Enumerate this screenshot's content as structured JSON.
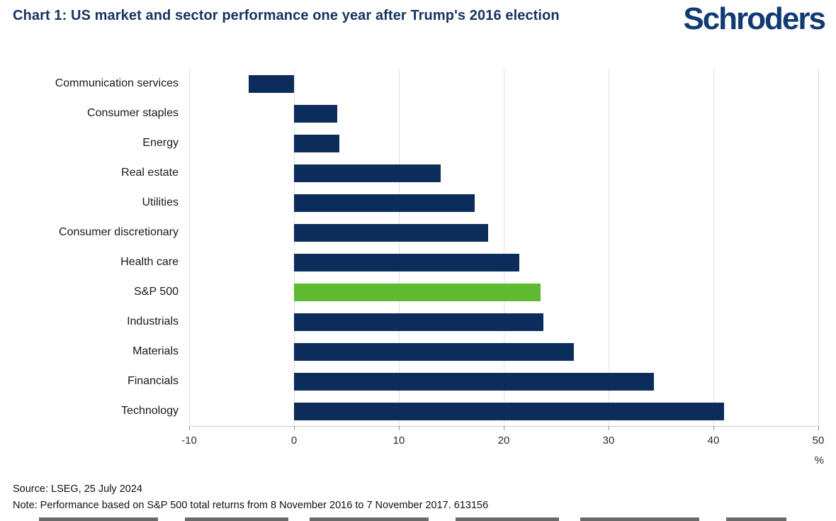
{
  "header": {
    "title": "Chart 1: US market and sector performance one year after Trump's 2016 election",
    "logo": "Schroders"
  },
  "chart_data": {
    "type": "bar",
    "orientation": "horizontal",
    "title": "Chart 1: US market and sector performance one year after Trump's 2016 election",
    "categories": [
      "Communication services",
      "Consumer staples",
      "Energy",
      "Real estate",
      "Utilities",
      "Consumer discretionary",
      "Health care",
      "S&P 500",
      "Industrials",
      "Materials",
      "Financials",
      "Technology"
    ],
    "values": [
      -4.3,
      4.1,
      4.3,
      14.0,
      17.2,
      18.5,
      21.5,
      23.5,
      23.8,
      26.7,
      34.3,
      41.0
    ],
    "highlight_category": "S&P 500",
    "bar_color": "#0c2d5c",
    "highlight_color": "#5eba30",
    "xlim": [
      -10,
      50
    ],
    "xticks": [
      -10,
      0,
      10,
      20,
      30,
      40,
      50
    ],
    "x_unit": "%",
    "grid": "vertical",
    "legend": "none"
  },
  "footer": {
    "source": "Source: LSEG, 25 July 2024",
    "note": "Note: Performance based on S&P 500 total returns from 8 November 2016 to 7 November 2017. 613156"
  }
}
